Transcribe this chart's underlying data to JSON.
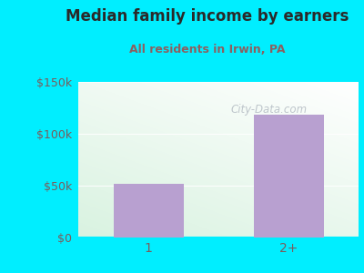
{
  "title": "Median family income by earners",
  "subtitle": "All residents in Irwin, PA",
  "categories": [
    "1",
    "2+"
  ],
  "values": [
    52000,
    118000
  ],
  "bar_color": "#b8a0d0",
  "background_outer": "#00eeff",
  "title_color": "#2a2a2a",
  "subtitle_color": "#8b6060",
  "tick_color": "#7a5c5c",
  "ylim": [
    0,
    150000
  ],
  "yticks": [
    0,
    50000,
    100000,
    150000
  ],
  "ytick_labels": [
    "$0",
    "$50k",
    "$100k",
    "$150k"
  ],
  "watermark": "City-Data.com",
  "figsize": [
    4.0,
    3.0
  ],
  "dpi": 100
}
